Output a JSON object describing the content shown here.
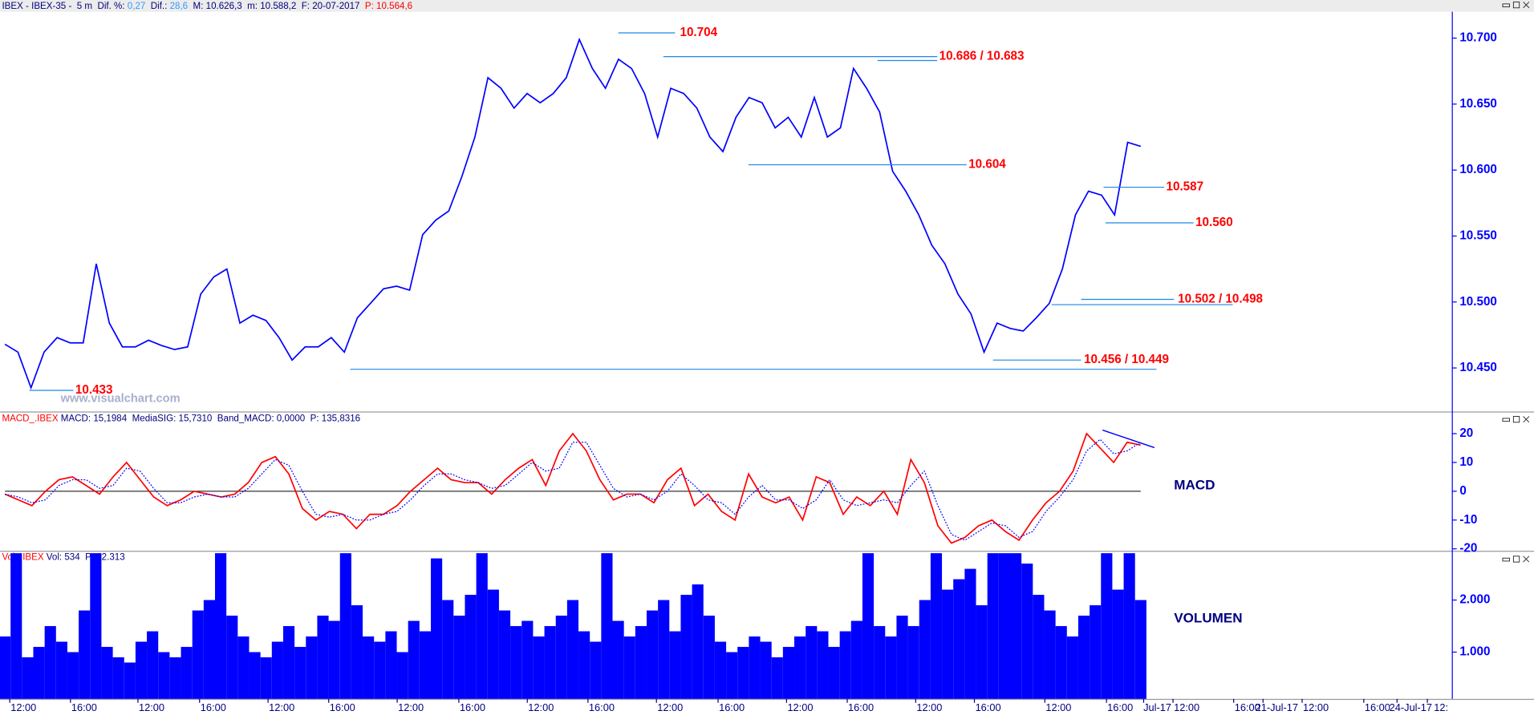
{
  "header": {
    "parts": [
      "IBEX - IBEX-35 -  5 m  Dif. %: ",
      "0,27",
      "  Dif.: ",
      "28,6",
      "  M: 10.626,3  m: 10.588,2  F: 20-07-2017  ",
      "P: 10.564,6"
    ]
  },
  "x_axis": {
    "labels": [
      "12:00",
      "16:00",
      "12:00",
      "16:00",
      "12:00",
      "16:00",
      "12:00",
      "16:00",
      "12:00",
      "16:00",
      "12:00",
      "16:00",
      "12:00",
      "16:00",
      "12:00",
      "16:00",
      "12:00",
      "16:00",
      "Jul-17",
      "12:00",
      "16:00",
      "21-Jul-17",
      "12:00",
      "16:00",
      "24-Jul-17",
      "12:"
    ]
  },
  "chart_data": [
    {
      "type": "line",
      "watermark": "www.visualchart.com",
      "color": "#0000ff",
      "values": [
        10468,
        10462,
        10435,
        10462,
        10473,
        10469,
        10469,
        10529,
        10484,
        10466,
        10466,
        10471,
        10467,
        10464,
        10466,
        10506,
        10519,
        10525,
        10484,
        10490,
        10486,
        10473,
        10456,
        10466,
        10466,
        10473,
        10462,
        10488,
        10499,
        10510,
        10512,
        10509,
        10551,
        10562,
        10569,
        10595,
        10625,
        10670,
        10662,
        10647,
        10658,
        10651,
        10658,
        10670,
        10699,
        10677,
        10662,
        10684,
        10677,
        10658,
        10625,
        10662,
        10658,
        10647,
        10625,
        10614,
        10640,
        10655,
        10651,
        10632,
        10640,
        10625,
        10655,
        10625,
        10632,
        10677,
        10662,
        10644,
        10599,
        10584,
        10566,
        10543,
        10529,
        10506,
        10491,
        10462,
        10484,
        10480,
        10478,
        10488,
        10499,
        10525,
        10566,
        10584,
        10581,
        10566,
        10621,
        10618
      ],
      "ylim": [
        10417,
        10720
      ],
      "yticks": [
        {
          "value": 10450,
          "label": "10.450"
        },
        {
          "value": 10500,
          "label": "10.500"
        },
        {
          "value": 10550,
          "label": "10.550"
        },
        {
          "value": 10600,
          "label": "10.600"
        },
        {
          "value": 10650,
          "label": "10.650"
        },
        {
          "value": 10700,
          "label": "10.700"
        }
      ],
      "annotations": [
        {
          "label": "10.704",
          "levels": [
            10704
          ]
        },
        {
          "label": "10.686 / 10.683",
          "levels": [
            10686,
            10683
          ]
        },
        {
          "label": "10.604",
          "levels": [
            10604
          ]
        },
        {
          "label": "10.587",
          "levels": [
            10587
          ]
        },
        {
          "label": "10.560",
          "levels": [
            10560
          ]
        },
        {
          "label": "10.502 / 10.498",
          "levels": [
            10502,
            10498
          ]
        },
        {
          "label": "10.456 / 10.449",
          "levels": [
            10456,
            10449
          ]
        },
        {
          "label": "10.433",
          "levels": [
            10433
          ]
        }
      ]
    },
    {
      "type": "line",
      "header": [
        "MACD_.IBEX",
        " MACD: 15,1984  MediaSIG: 15,7310  Band_MACD: 0,0000  P: 135,8316"
      ],
      "label": "MACD",
      "series": [
        {
          "color": "#ff0000",
          "values": [
            -1,
            -3,
            -5,
            0,
            4,
            5,
            2,
            -1,
            5,
            10,
            4,
            -2,
            -5,
            -3,
            0,
            -1,
            -2,
            -1,
            3,
            10,
            12,
            6,
            -6,
            -10,
            -7,
            -8,
            -13,
            -8,
            -8,
            -5,
            0,
            4,
            8,
            4,
            3,
            3,
            -1,
            4,
            8,
            11,
            2,
            14,
            20,
            14,
            4,
            -3,
            -1,
            -1,
            -4,
            4,
            8,
            -5,
            -1,
            -7,
            -10,
            6,
            -2,
            -4,
            -2,
            -10,
            5,
            3,
            -8,
            -2,
            -5,
            0,
            -8,
            11,
            3,
            -12,
            -18,
            -16,
            -12,
            -10,
            -14,
            -17,
            -10,
            -4,
            0,
            7,
            20,
            15,
            10,
            17,
            16
          ]
        },
        {
          "color": "#0000ff",
          "dash": true,
          "values": [
            -1,
            -2,
            -4,
            -3,
            2,
            4,
            4,
            1,
            2,
            8,
            7,
            1,
            -4,
            -4,
            -2,
            -1,
            -2,
            -2,
            1,
            6,
            11,
            9,
            0,
            -8,
            -9,
            -8,
            -10,
            -10,
            -8,
            -7,
            -3,
            2,
            6,
            6,
            4,
            3,
            1,
            2,
            6,
            10,
            7,
            8,
            17,
            17,
            9,
            1,
            -2,
            -1,
            -3,
            0,
            6,
            2,
            -3,
            -4,
            -8,
            -2,
            2,
            -3,
            -3,
            -6,
            -3,
            4,
            -3,
            -5,
            -4,
            -3,
            -4,
            2,
            7,
            -5,
            -15,
            -17,
            -14,
            -11,
            -12,
            -16,
            -14,
            -7,
            -2,
            4,
            14,
            18,
            13,
            14,
            17
          ]
        }
      ],
      "ylim": [
        -20.5,
        27
      ],
      "yticks": [
        20,
        10,
        0,
        -10,
        -20
      ]
    },
    {
      "type": "bar",
      "header": [
        "Vol_.IBEX",
        " Vol: 534  P: 12.313"
      ],
      "label": "VOLUMEN",
      "color": "#0000ff",
      "values": [
        1300,
        2900,
        900,
        1100,
        1500,
        1200,
        1000,
        1800,
        2900,
        1100,
        900,
        800,
        1200,
        1400,
        1000,
        900,
        1100,
        1800,
        2000,
        2900,
        1700,
        1300,
        1000,
        900,
        1200,
        1500,
        1100,
        1300,
        1700,
        1600,
        2900,
        1900,
        1300,
        1200,
        1400,
        1000,
        1600,
        1400,
        2800,
        2000,
        1700,
        2100,
        2900,
        2200,
        1800,
        1500,
        1600,
        1300,
        1500,
        1700,
        2000,
        1400,
        1200,
        2900,
        1600,
        1300,
        1500,
        1800,
        2000,
        1400,
        2100,
        2300,
        1700,
        1200,
        1000,
        1100,
        1300,
        1200,
        900,
        1100,
        1300,
        1500,
        1400,
        1100,
        1400,
        1600,
        2900,
        1500,
        1300,
        1700,
        1500,
        2000,
        2900,
        2200,
        2400,
        2600,
        1900,
        2900,
        2900,
        2900,
        2700,
        2100,
        1800,
        1500,
        1300,
        1700,
        1900,
        2900,
        2200,
        2900,
        2000
      ],
      "ylim": [
        102,
        2918
      ],
      "yticks": [
        {
          "value": 1000,
          "label": "1.000"
        },
        {
          "value": 2000,
          "label": "2.000"
        }
      ]
    }
  ]
}
